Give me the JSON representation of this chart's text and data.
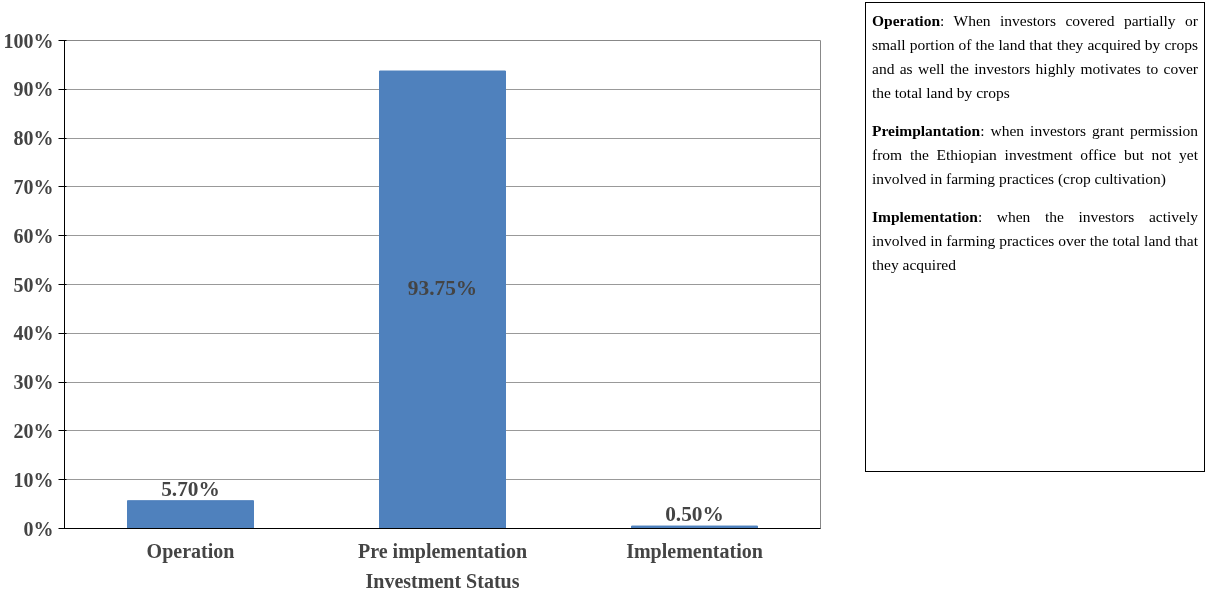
{
  "chart_data": [
    {
      "type": "bar",
      "xlabel": "Investment Status",
      "categories": [
        "Operation",
        "Pre implementation",
        "Implementation"
      ],
      "values": [
        5.7,
        93.75,
        0.5
      ],
      "color": "#4f81bd",
      "value_labels": [
        "5.70%",
        "93.75%",
        "0.50%"
      ],
      "ylim": [
        0,
        100
      ],
      "yticks": [
        {
          "value": 0,
          "label": "0%"
        },
        {
          "value": 10,
          "label": "10%"
        },
        {
          "value": 20,
          "label": "20%"
        },
        {
          "value": 30,
          "label": "30%"
        },
        {
          "value": 40,
          "label": "40%"
        },
        {
          "value": 50,
          "label": "50%"
        },
        {
          "value": 60,
          "label": "60%"
        },
        {
          "value": 70,
          "label": "70%"
        },
        {
          "value": 80,
          "label": "80%"
        },
        {
          "value": 90,
          "label": "90%"
        },
        {
          "value": 100,
          "label": "100%"
        }
      ],
      "grid": "y"
    },
    {
      "type": "other",
      "annotations": [
        "Operation: When investors covered partially or small portion of the land that they acquired by crops and as well the investors highly motivates to cover the total land by crops",
        "Preimplantation: when investors grant permission from the Ethiopian investment office but not yet involved in farming practices (crop cultivation)",
        "Implementation: when the investors actively involved in farming practices over the total land that they acquired"
      ]
    }
  ]
}
